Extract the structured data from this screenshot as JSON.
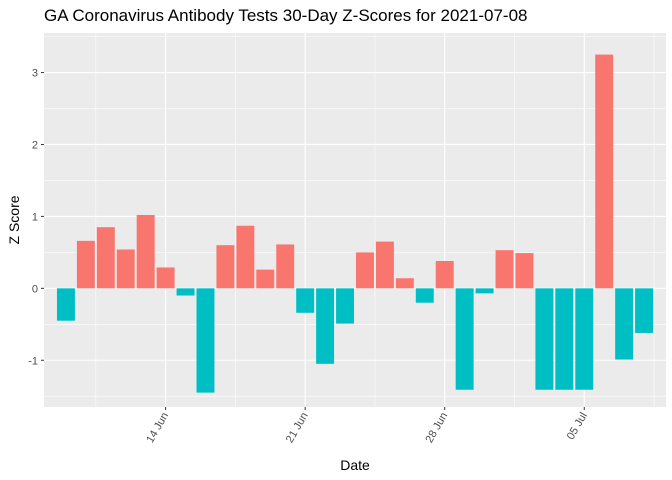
{
  "chart_data": {
    "type": "bar",
    "title": "GA Coronavirus Antibody Tests 30-Day Z-Scores for 2021-07-08",
    "xlabel": "Date",
    "ylabel": "Z Score",
    "ylim": [
      -1.65,
      3.55
    ],
    "yticks": [
      -1,
      0,
      1,
      2,
      3
    ],
    "xticks": [
      {
        "label": "14 Jun",
        "date": "2021-06-14"
      },
      {
        "label": "21 Jun",
        "date": "2021-06-21"
      },
      {
        "label": "28 Jun",
        "date": "2021-06-28"
      },
      {
        "label": "05 Jul",
        "date": "2021-07-05"
      }
    ],
    "grid": true,
    "legend": "none",
    "colors": {
      "positive": "#F8766D",
      "negative": "#00BFC4",
      "panel": "#EBEBEB",
      "grid": "#FFFFFF"
    },
    "points": [
      {
        "date": "2021-06-09",
        "value": -0.45
      },
      {
        "date": "2021-06-10",
        "value": 0.66
      },
      {
        "date": "2021-06-11",
        "value": 0.85
      },
      {
        "date": "2021-06-12",
        "value": 0.54
      },
      {
        "date": "2021-06-13",
        "value": 1.02
      },
      {
        "date": "2021-06-14",
        "value": 0.29
      },
      {
        "date": "2021-06-15",
        "value": -0.1
      },
      {
        "date": "2021-06-16",
        "value": -1.45
      },
      {
        "date": "2021-06-17",
        "value": 0.6
      },
      {
        "date": "2021-06-18",
        "value": 0.87
      },
      {
        "date": "2021-06-19",
        "value": 0.26
      },
      {
        "date": "2021-06-20",
        "value": 0.61
      },
      {
        "date": "2021-06-21",
        "value": -0.34
      },
      {
        "date": "2021-06-22",
        "value": -1.05
      },
      {
        "date": "2021-06-23",
        "value": -0.49
      },
      {
        "date": "2021-06-24",
        "value": 0.5
      },
      {
        "date": "2021-06-25",
        "value": 0.65
      },
      {
        "date": "2021-06-26",
        "value": 0.14
      },
      {
        "date": "2021-06-27",
        "value": -0.2
      },
      {
        "date": "2021-06-28",
        "value": 0.38
      },
      {
        "date": "2021-06-29",
        "value": -1.41
      },
      {
        "date": "2021-06-30",
        "value": -0.07
      },
      {
        "date": "2021-07-01",
        "value": 0.53
      },
      {
        "date": "2021-07-02",
        "value": 0.49
      },
      {
        "date": "2021-07-03",
        "value": -1.41
      },
      {
        "date": "2021-07-04",
        "value": -1.41
      },
      {
        "date": "2021-07-05",
        "value": -1.41
      },
      {
        "date": "2021-07-06",
        "value": 3.25
      },
      {
        "date": "2021-07-07",
        "value": -0.99
      },
      {
        "date": "2021-07-08",
        "value": -0.62
      }
    ]
  }
}
